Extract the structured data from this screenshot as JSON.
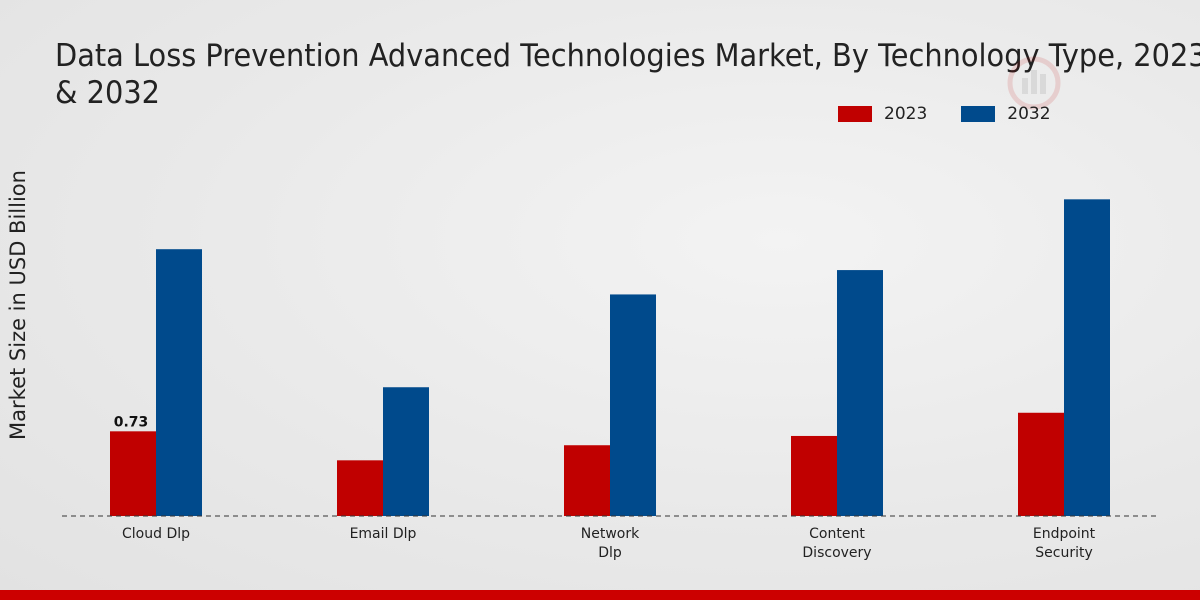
{
  "title_lines": [
    "Data Loss Prevention Advanced Technologies Market, By Technology Type, 2023",
    "& 2032"
  ],
  "colors": {
    "2023": "#c00000",
    "2032": "#004a8c",
    "footer": "#cc0000"
  },
  "chart_data": {
    "type": "bar",
    "title": "Data Loss Prevention Advanced Technologies Market, By Technology Type, 2023 & 2032",
    "xlabel": "",
    "ylabel": "Market Size in USD Billion",
    "categories": [
      [
        "Cloud Dlp"
      ],
      [
        "Email Dlp"
      ],
      [
        "Network",
        "Dlp"
      ],
      [
        "Content",
        "Discovery"
      ],
      [
        "Endpoint",
        "Security"
      ]
    ],
    "series": [
      {
        "name": "2023",
        "values": [
          0.73,
          0.48,
          0.61,
          0.69,
          0.89
        ]
      },
      {
        "name": "2032",
        "values": [
          2.3,
          1.11,
          1.91,
          2.12,
          2.73
        ]
      }
    ],
    "data_labels": [
      {
        "series": 0,
        "index": 0,
        "text": "0.73"
      }
    ],
    "ylim": [
      0,
      3.5
    ],
    "legend": "top-right",
    "grid": false
  }
}
